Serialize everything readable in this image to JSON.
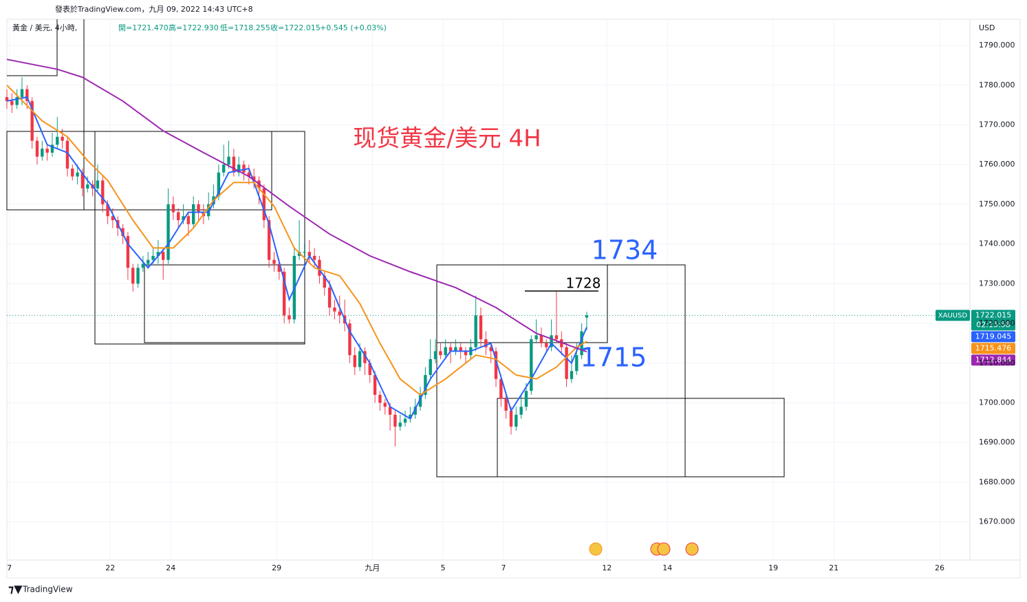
{
  "header": {
    "published": "發表於TradingView.com，九月 09, 2022 14:43 UTC+8",
    "symbol": "黃金 / 美元, 4小時,",
    "ohlc_text": [
      "開=1721.470",
      "高=1722.930",
      "低=1718.255",
      "收=1722.015",
      "+0.545 (+0.03%)"
    ],
    "logo": "TradingView"
  },
  "chart_data": {
    "type": "candlestick",
    "title": "现货黄金/美元 4H",
    "currency": "USD",
    "symbol": "XAUUSD",
    "countdown": "02:15:58",
    "up_color": "#089981",
    "down_color": "#f23645",
    "grid": true,
    "ylim": [
      1660.4,
      1796.6
    ],
    "yticks": [
      {
        "value": 1670,
        "label": "1670.000"
      },
      {
        "value": 1680,
        "label": "1680.000"
      },
      {
        "value": 1690,
        "label": "1690.000"
      },
      {
        "value": 1700,
        "label": "1700.000"
      },
      {
        "value": 1710,
        "label": "1710.000"
      },
      {
        "value": 1720,
        "label": "1720.000"
      },
      {
        "value": 1730,
        "label": "1730.000"
      },
      {
        "value": 1740,
        "label": "1740.000"
      },
      {
        "value": 1750,
        "label": "1750.000"
      },
      {
        "value": 1760,
        "label": "1760.000"
      },
      {
        "value": 1770,
        "label": "1770.000"
      },
      {
        "value": 1780,
        "label": "1780.000"
      },
      {
        "value": 1790,
        "label": "1790.000"
      }
    ],
    "xlim": [
      0,
      191
    ],
    "xticks": [
      {
        "value": 0.5,
        "label": "7"
      },
      {
        "value": 20.5,
        "label": "22"
      },
      {
        "value": 32.5,
        "label": "24"
      },
      {
        "value": 53.5,
        "label": "29"
      },
      {
        "value": 72.5,
        "label": "九月"
      },
      {
        "value": 86.5,
        "label": "5"
      },
      {
        "value": 98.5,
        "label": "7"
      },
      {
        "value": 119,
        "label": "12"
      },
      {
        "value": 131,
        "label": "14"
      },
      {
        "value": 152,
        "label": "19"
      },
      {
        "value": 164,
        "label": "21"
      },
      {
        "value": 185,
        "label": "26"
      }
    ],
    "ohlc": [
      [
        1777,
        1779,
        1774,
        1776
      ],
      [
        1776,
        1778,
        1773,
        1775
      ],
      [
        1775,
        1779,
        1774,
        1777
      ],
      [
        1777,
        1782,
        1775,
        1779
      ],
      [
        1779,
        1780,
        1774,
        1776
      ],
      [
        1776,
        1777,
        1764,
        1766
      ],
      [
        1766,
        1767,
        1760,
        1762
      ],
      [
        1762,
        1766,
        1761,
        1764
      ],
      [
        1764,
        1765,
        1761,
        1763
      ],
      [
        1763,
        1768,
        1762,
        1765
      ],
      [
        1765,
        1772,
        1764,
        1767
      ],
      [
        1767,
        1769,
        1764,
        1766
      ],
      [
        1766,
        1767,
        1757,
        1759
      ],
      [
        1759,
        1760,
        1756,
        1757
      ],
      [
        1757,
        1760,
        1755,
        1758
      ],
      [
        1758,
        1759,
        1752,
        1754
      ],
      [
        1754,
        1757,
        1753,
        1755
      ],
      [
        1755,
        1756,
        1752,
        1754
      ],
      [
        1754,
        1760,
        1753,
        1756
      ],
      [
        1756,
        1757,
        1748,
        1750
      ],
      [
        1750,
        1751,
        1745,
        1747
      ],
      [
        1747,
        1749,
        1744,
        1746
      ],
      [
        1746,
        1747,
        1742,
        1744
      ],
      [
        1744,
        1745,
        1740,
        1742
      ],
      [
        1742,
        1743,
        1731,
        1734
      ],
      [
        1734,
        1735,
        1728,
        1730
      ],
      [
        1730,
        1735,
        1729,
        1734
      ],
      [
        1734,
        1737,
        1733,
        1735
      ],
      [
        1735,
        1738,
        1734,
        1736
      ],
      [
        1736,
        1739,
        1735,
        1737
      ],
      [
        1737,
        1741,
        1735,
        1738
      ],
      [
        1738,
        1739,
        1731,
        1736
      ],
      [
        1736,
        1754,
        1735,
        1750
      ],
      [
        1750,
        1752,
        1746,
        1748
      ],
      [
        1748,
        1749,
        1744,
        1746
      ],
      [
        1746,
        1750,
        1745,
        1747
      ],
      [
        1747,
        1748,
        1742,
        1745
      ],
      [
        1745,
        1752,
        1744,
        1750
      ],
      [
        1750,
        1751,
        1746,
        1748
      ],
      [
        1748,
        1750,
        1745,
        1747
      ],
      [
        1747,
        1753,
        1746,
        1750
      ],
      [
        1750,
        1755,
        1749,
        1752
      ],
      [
        1752,
        1760,
        1751,
        1758
      ],
      [
        1758,
        1765,
        1757,
        1760
      ],
      [
        1760,
        1766,
        1759,
        1762
      ],
      [
        1762,
        1764,
        1757,
        1758
      ],
      [
        1758,
        1762,
        1757,
        1760
      ],
      [
        1760,
        1761,
        1756,
        1758
      ],
      [
        1758,
        1760,
        1755,
        1757
      ],
      [
        1757,
        1759,
        1754,
        1756
      ],
      [
        1756,
        1757,
        1750,
        1754
      ],
      [
        1754,
        1755,
        1744,
        1746
      ],
      [
        1746,
        1747,
        1734,
        1736
      ],
      [
        1736,
        1738,
        1733,
        1735
      ],
      [
        1735,
        1736,
        1731,
        1733
      ],
      [
        1733,
        1734,
        1720,
        1722
      ],
      [
        1722,
        1724,
        1720,
        1721
      ],
      [
        1721,
        1739,
        1720,
        1737
      ],
      [
        1737,
        1746,
        1736,
        1738
      ],
      [
        1738,
        1740,
        1736,
        1738
      ],
      [
        1738,
        1741,
        1735,
        1737
      ],
      [
        1737,
        1739,
        1734,
        1736
      ],
      [
        1736,
        1737,
        1730,
        1732
      ],
      [
        1732,
        1733,
        1727,
        1729
      ],
      [
        1729,
        1731,
        1722,
        1724
      ],
      [
        1724,
        1726,
        1721,
        1723
      ],
      [
        1723,
        1727,
        1720,
        1722
      ],
      [
        1722,
        1726,
        1718,
        1720
      ],
      [
        1720,
        1721,
        1710,
        1712
      ],
      [
        1712,
        1714,
        1707,
        1709
      ],
      [
        1709,
        1715,
        1708,
        1713
      ],
      [
        1713,
        1714,
        1707,
        1710
      ],
      [
        1710,
        1711,
        1705,
        1707
      ],
      [
        1707,
        1708,
        1700,
        1702
      ],
      [
        1702,
        1703,
        1698,
        1700
      ],
      [
        1700,
        1701,
        1697,
        1699
      ],
      [
        1699,
        1700,
        1693,
        1697
      ],
      [
        1697,
        1698,
        1689,
        1694
      ],
      [
        1694,
        1697,
        1693,
        1695
      ],
      [
        1695,
        1698,
        1694,
        1696
      ],
      [
        1696,
        1699,
        1695,
        1697
      ],
      [
        1697,
        1701,
        1696,
        1699
      ],
      [
        1699,
        1704,
        1698,
        1702
      ],
      [
        1702,
        1709,
        1701,
        1707
      ],
      [
        1707,
        1716,
        1706,
        1711
      ],
      [
        1711,
        1716,
        1710,
        1713
      ],
      [
        1713,
        1715,
        1711,
        1712
      ],
      [
        1712,
        1716,
        1711,
        1714
      ],
      [
        1714,
        1715,
        1710,
        1713
      ],
      [
        1713,
        1716,
        1712,
        1714
      ],
      [
        1714,
        1715,
        1711,
        1713
      ],
      [
        1713,
        1714,
        1710,
        1712
      ],
      [
        1712,
        1716,
        1711,
        1714
      ],
      [
        1714,
        1727,
        1713,
        1722
      ],
      [
        1722,
        1724,
        1714,
        1716
      ],
      [
        1716,
        1718,
        1712,
        1714
      ],
      [
        1714,
        1715,
        1710,
        1713
      ],
      [
        1713,
        1714,
        1704,
        1706
      ],
      [
        1706,
        1707,
        1699,
        1701
      ],
      [
        1701,
        1702,
        1696,
        1698
      ],
      [
        1698,
        1699,
        1692,
        1694
      ],
      [
        1694,
        1699,
        1693,
        1697
      ],
      [
        1697,
        1702,
        1696,
        1699
      ],
      [
        1699,
        1705,
        1698,
        1703
      ],
      [
        1703,
        1717,
        1702,
        1716
      ],
      [
        1716,
        1721,
        1715,
        1717
      ],
      [
        1717,
        1719,
        1714,
        1715
      ],
      [
        1715,
        1716,
        1713,
        1714
      ],
      [
        1714,
        1721,
        1713,
        1717
      ],
      [
        1717,
        1728,
        1715,
        1716
      ],
      [
        1716,
        1718,
        1712,
        1714
      ],
      [
        1714,
        1715,
        1704,
        1706
      ],
      [
        1706,
        1712,
        1705,
        1708
      ],
      [
        1708,
        1715,
        1707,
        1712
      ],
      [
        1712,
        1720,
        1711,
        1718
      ],
      [
        1721.47,
        1722.93,
        1718.255,
        1722.015
      ]
    ],
    "moving_averages": [
      {
        "color": "#2962ff",
        "x": [
          0,
          4,
          8,
          12,
          16,
          20,
          24,
          28,
          32,
          36,
          40,
          44,
          48,
          52,
          56,
          60,
          64,
          68,
          72,
          76,
          80,
          84,
          88,
          92,
          96,
          100,
          104,
          108,
          112,
          115
        ],
        "values": [
          1776,
          1777,
          1765,
          1763,
          1756,
          1750,
          1740,
          1734,
          1740,
          1748,
          1748,
          1758,
          1759,
          1745,
          1726,
          1737,
          1730,
          1718,
          1710,
          1699,
          1696,
          1706,
          1713,
          1713,
          1715,
          1698,
          1706,
          1715,
          1710,
          1719.045
        ]
      },
      {
        "color": "#f7931a",
        "x": [
          0,
          7,
          12,
          16,
          20,
          25,
          29,
          33,
          37,
          41,
          45,
          49,
          53,
          57,
          61,
          66,
          70,
          74,
          78,
          82,
          87,
          93,
          97,
          101,
          105,
          109,
          113,
          115
        ],
        "values": [
          1780,
          1771,
          1767,
          1761,
          1756,
          1746,
          1739,
          1739,
          1744,
          1751,
          1755.5,
          1755.5,
          1749.5,
          1739,
          1734,
          1732,
          1725,
          1715,
          1706,
          1702,
          1706,
          1712,
          1711,
          1707,
          1706,
          1709,
          1714,
          1715.476
        ]
      },
      {
        "color": "#9c27b0",
        "x": [
          0,
          10,
          15,
          23,
          31,
          39,
          48,
          56,
          64,
          72,
          80,
          89,
          97,
          105,
          115
        ],
        "values": [
          1786.5,
          1784,
          1782,
          1776,
          1768.5,
          1763,
          1757,
          1749.5,
          1742.5,
          1737,
          1733,
          1729,
          1724,
          1717.5,
          1712.844
        ]
      }
    ],
    "annotations": [
      {
        "text": "1734",
        "color": "#2962ff"
      },
      {
        "text": "1728",
        "color": "#000000"
      },
      {
        "text": "1715",
        "color": "#2962ff"
      }
    ]
  }
}
